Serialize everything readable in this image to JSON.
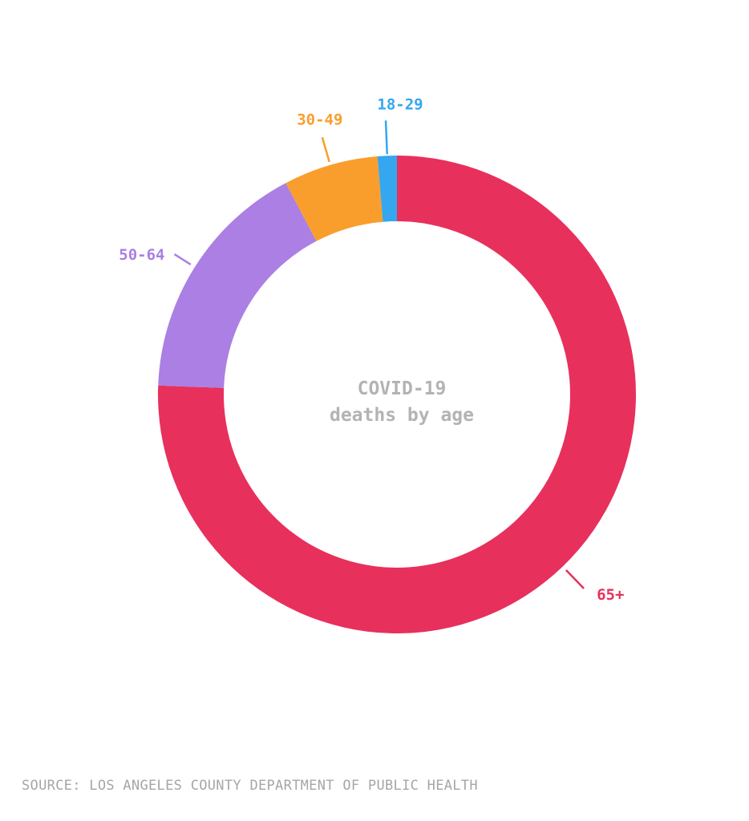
{
  "chart_data": {
    "type": "pie",
    "donut": true,
    "title": "COVID-19\ndeaths by age",
    "title_lines": [
      "COVID-19",
      "deaths by age"
    ],
    "categories": [
      "65+",
      "50-64",
      "30-49",
      "18-29"
    ],
    "values": [
      75.6,
      16.7,
      6.4,
      1.3
    ],
    "unit": "percent of deaths (estimated)",
    "colors": {
      "65+": "#e8305c",
      "50-64": "#ab7fe3",
      "30-49": "#f99e2d",
      "18-29": "#35a7ef"
    },
    "start_angle_deg": 0,
    "direction": "clockwise from top"
  },
  "source": "SOURCE: LOS ANGELES COUNTY DEPARTMENT OF PUBLIC HEALTH"
}
